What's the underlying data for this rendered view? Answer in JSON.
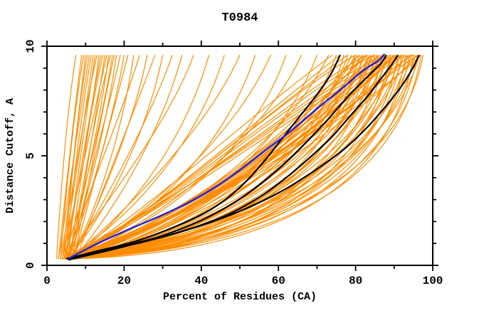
{
  "chart_data": {
    "type": "line",
    "title": "T0984",
    "xlabel": "Percent of Residues (CA)",
    "ylabel": "Distance Cutoff, A",
    "xlim": [
      0,
      100
    ],
    "ylim": [
      0,
      10
    ],
    "x_major_ticks": [
      0,
      20,
      40,
      60,
      80,
      100
    ],
    "x_minor_ticks": [
      10,
      30,
      50,
      70,
      90
    ],
    "y_major_ticks": [
      0,
      5,
      10
    ],
    "y_minor_ticks": [
      1,
      2,
      3,
      4,
      6,
      7,
      8,
      9
    ],
    "x_tick_labels": [
      "0",
      "20",
      "40",
      "60",
      "80",
      "100"
    ],
    "y_tick_labels": [
      "0",
      "5",
      "10"
    ],
    "grid": false,
    "legend": "none",
    "colors": {
      "orange_curves": "#FF8C00",
      "black_curves": "#000000",
      "blue_curve": "#2020DD",
      "frame": "#000000",
      "background": "#FFFFFF"
    },
    "curve_y_start": 0.3,
    "curve_y_end": 9.6,
    "series": {
      "blue_curve": {
        "points": [
          [
            5.5,
            0.3
          ],
          [
            12,
            0.9
          ],
          [
            20,
            1.55
          ],
          [
            28,
            2.15
          ],
          [
            36,
            2.8
          ],
          [
            43,
            3.5
          ],
          [
            50,
            4.35
          ],
          [
            57,
            5.3
          ],
          [
            63,
            6.1
          ],
          [
            70,
            7.15
          ],
          [
            76,
            8.0
          ],
          [
            82,
            8.9
          ],
          [
            86,
            9.35
          ],
          [
            87.5,
            9.65
          ]
        ]
      },
      "black_curves": {
        "curves": [
          [
            [
              5,
              0.3
            ],
            [
              13,
              0.65
            ],
            [
              23,
              1.1
            ],
            [
              33,
              1.75
            ],
            [
              41,
              2.4
            ],
            [
              47,
              3.1
            ],
            [
              52,
              3.9
            ],
            [
              57,
              4.9
            ],
            [
              61,
              5.8
            ],
            [
              66,
              6.9
            ],
            [
              70,
              7.8
            ],
            [
              73.5,
              8.7
            ],
            [
              76,
              9.6
            ]
          ],
          [
            [
              5,
              0.3
            ],
            [
              16,
              0.75
            ],
            [
              28,
              1.25
            ],
            [
              38,
              1.9
            ],
            [
              46,
              2.6
            ],
            [
              53,
              3.4
            ],
            [
              60,
              4.4
            ],
            [
              66,
              5.4
            ],
            [
              72,
              6.5
            ],
            [
              78,
              7.7
            ],
            [
              83,
              8.6
            ],
            [
              86.5,
              9.2
            ],
            [
              88,
              9.6
            ]
          ],
          [
            [
              5.5,
              0.25
            ],
            [
              20,
              0.85
            ],
            [
              34,
              1.5
            ],
            [
              46,
              2.25
            ],
            [
              55,
              3.1
            ],
            [
              62,
              4.0
            ],
            [
              68,
              4.9
            ],
            [
              73.5,
              5.8
            ],
            [
              78.5,
              6.8
            ],
            [
              83,
              7.7
            ],
            [
              86.5,
              8.5
            ],
            [
              89.5,
              9.2
            ],
            [
              91,
              9.6
            ]
          ],
          [
            [
              5.5,
              0.3
            ],
            [
              18,
              0.8
            ],
            [
              31,
              1.35
            ],
            [
              43,
              2.0
            ],
            [
              53,
              2.7
            ],
            [
              62,
              3.5
            ],
            [
              70,
              4.4
            ],
            [
              77,
              5.3
            ],
            [
              83,
              6.3
            ],
            [
              88,
              7.3
            ],
            [
              92,
              8.2
            ],
            [
              94.8,
              9.0
            ],
            [
              96.5,
              9.6
            ]
          ]
        ]
      },
      "orange_curves": {
        "bezier_specs": [
          [
            2.5,
            3.5,
            3.2,
            5.0,
            6.8,
            7.5
          ],
          [
            3,
            4.5,
            2.8,
            6.5,
            6.2,
            9
          ],
          [
            3.5,
            5,
            3.5,
            7,
            7,
            9.5
          ],
          [
            4,
            5.5,
            2.6,
            7.5,
            6,
            10
          ],
          [
            4.5,
            6,
            3.2,
            8,
            7.2,
            10.5
          ],
          [
            3,
            5,
            2.4,
            8,
            6.4,
            11
          ],
          [
            5,
            6.5,
            3.6,
            9,
            7,
            11.5
          ],
          [
            4,
            6,
            2.2,
            9,
            5.8,
            12
          ],
          [
            5.5,
            7,
            3,
            10,
            6.6,
            12.5
          ],
          [
            3.5,
            6,
            2.7,
            10,
            7.4,
            13
          ],
          [
            6,
            8,
            3.3,
            11,
            6.2,
            13.5
          ],
          [
            4.5,
            7,
            2.3,
            11,
            6.9,
            14
          ],
          [
            5,
            8,
            3.8,
            12,
            7.6,
            14.5
          ],
          [
            6.5,
            8.5,
            2.5,
            12,
            6,
            15
          ],
          [
            4,
            7.5,
            3.1,
            12.5,
            7.1,
            15.5
          ],
          [
            5.5,
            8,
            2.2,
            13,
            5.6,
            16
          ],
          [
            6,
            9,
            3.4,
            13.5,
            7.8,
            16.5
          ],
          [
            4.5,
            8.5,
            2.6,
            14,
            6.3,
            17
          ],
          [
            7,
            10,
            3,
            14.5,
            7.3,
            17.5
          ],
          [
            5,
            9,
            2.1,
            15,
            5.9,
            18
          ],
          [
            6.5,
            10,
            3.7,
            16,
            7,
            19
          ],
          [
            5.5,
            10,
            2.4,
            17,
            6.5,
            20
          ],
          [
            7,
            11,
            3.1,
            18,
            7.5,
            21
          ],
          [
            6,
            11.5,
            2.0,
            19,
            5.5,
            22.5
          ],
          [
            5,
            11,
            3.5,
            20,
            7.2,
            24
          ],
          [
            6.5,
            13,
            2.6,
            22,
            6.1,
            26
          ],
          [
            7.5,
            14,
            3.2,
            24,
            7.7,
            28
          ],
          [
            5.5,
            13,
            1.9,
            25,
            5.3,
            30
          ],
          [
            6,
            15,
            2.9,
            27,
            6.8,
            32.5
          ],
          [
            7,
            16,
            2.2,
            29,
            5.7,
            35
          ],
          [
            5,
            15,
            2.8,
            32,
            6.6,
            38
          ],
          [
            6.5,
            18,
            1.8,
            35,
            5.2,
            42
          ],
          [
            4.5,
            18,
            1.6,
            38,
            5.0,
            46
          ],
          [
            6,
            21,
            2.5,
            42,
            6.4,
            50
          ],
          [
            5,
            22,
            1.5,
            45,
            4.8,
            54
          ],
          [
            7,
            26,
            2.3,
            49,
            6.0,
            58
          ],
          [
            4,
            25,
            1.4,
            52,
            4.6,
            62
          ],
          [
            6.5,
            30,
            2.1,
            56,
            5.8,
            66
          ],
          [
            5.5,
            30,
            1.3,
            59,
            4.4,
            70
          ],
          [
            7.5,
            34,
            2.0,
            62,
            5.6,
            73
          ],
          [
            4,
            34,
            0.9,
            64,
            4.2,
            75
          ],
          [
            5,
            38,
            1.4,
            66,
            5.5,
            76
          ],
          [
            6,
            36,
            0.7,
            68,
            3.9,
            77
          ],
          [
            4.5,
            40,
            1.2,
            69,
            5.0,
            78
          ],
          [
            7,
            42,
            1.6,
            70,
            6.2,
            79
          ],
          [
            5.5,
            38,
            0.8,
            71,
            4.4,
            80
          ],
          [
            3.5,
            44,
            1.3,
            72,
            5.7,
            80.5
          ],
          [
            6.5,
            40,
            0.6,
            73,
            3.6,
            81
          ],
          [
            5,
            45,
            1.5,
            74,
            6.0,
            81.5
          ],
          [
            4,
            42,
            1.0,
            74,
            4.7,
            82
          ],
          [
            7.5,
            47,
            1.7,
            75,
            6.4,
            82.5
          ],
          [
            5.5,
            44,
            0.7,
            76,
            4.0,
            83
          ],
          [
            4.5,
            48,
            1.2,
            76,
            5.3,
            83.5
          ],
          [
            6,
            46,
            0.9,
            77,
            4.5,
            84
          ],
          [
            3.5,
            50,
            1.6,
            77,
            6.1,
            84.5
          ],
          [
            7,
            48,
            0.6,
            78,
            3.7,
            85
          ],
          [
            5,
            52,
            1.3,
            79,
            5.6,
            85.5
          ],
          [
            6.5,
            50,
            1.0,
            79,
            4.8,
            86
          ],
          [
            4,
            53,
            1.7,
            80,
            6.3,
            86.5
          ],
          [
            5.5,
            51,
            0.7,
            81,
            4.1,
            87
          ],
          [
            7.5,
            55,
            1.4,
            81,
            5.8,
            87.5
          ],
          [
            4.5,
            52,
            0.9,
            82,
            4.6,
            88
          ],
          [
            6,
            56,
            1.6,
            82,
            6.0,
            88.5
          ],
          [
            5,
            54,
            0.6,
            83,
            3.8,
            89
          ],
          [
            3.5,
            57,
            1.2,
            84,
            5.4,
            89.5
          ],
          [
            7,
            56,
            0.9,
            84,
            4.9,
            90
          ],
          [
            5.5,
            59,
            1.5,
            85,
            6.2,
            90.5
          ],
          [
            6.5,
            57,
            0.7,
            86,
            4.2,
            91
          ],
          [
            4,
            60,
            1.3,
            86,
            5.7,
            91.5
          ],
          [
            5,
            58,
            1.0,
            87,
            4.4,
            92
          ],
          [
            7.5,
            62,
            1.6,
            87,
            6.1,
            92.5
          ],
          [
            4.5,
            60,
            0.7,
            88,
            4.0,
            93
          ],
          [
            6,
            63,
            1.2,
            88,
            5.5,
            93.5
          ],
          [
            5.5,
            61,
            0.9,
            89,
            4.7,
            94
          ],
          [
            3.5,
            64,
            1.5,
            89,
            6.0,
            94.5
          ],
          [
            7,
            63,
            0.6,
            90,
            3.9,
            95
          ],
          [
            5,
            66,
            1.3,
            90,
            5.6,
            95.5
          ],
          [
            6.5,
            64,
            1.0,
            91,
            4.5,
            96
          ],
          [
            4,
            67,
            1.6,
            91,
            5.9,
            96.5
          ],
          [
            5.5,
            66,
            0.8,
            92,
            4.3,
            97
          ],
          [
            6,
            68,
            1.2,
            93,
            5.2,
            97.5
          ],
          [
            4.5,
            30,
            0.8,
            68,
            5.8,
            80
          ],
          [
            5,
            33,
            1.8,
            70,
            6.8,
            82
          ],
          [
            6,
            28,
            1.1,
            72,
            6.5,
            84
          ],
          [
            4,
            36,
            2.0,
            74,
            7.0,
            86
          ],
          [
            5.5,
            31,
            0.9,
            76,
            6.7,
            88
          ],
          [
            6.5,
            38,
            1.9,
            78,
            7.2,
            90
          ],
          [
            5,
            34,
            1.0,
            80,
            6.9,
            92
          ],
          [
            4.5,
            40,
            2.1,
            82,
            7.4,
            94
          ],
          [
            6,
            36,
            1.1,
            84,
            7.1,
            96
          ],
          [
            5.5,
            42,
            2.2,
            85,
            7.6,
            97
          ],
          [
            4,
            48,
            2.8,
            72,
            7.8,
            83
          ],
          [
            6.5,
            52,
            3.0,
            75,
            8.0,
            86
          ],
          [
            5,
            55,
            3.2,
            78,
            8.2,
            89
          ],
          [
            7,
            58,
            3.4,
            81,
            8.4,
            92
          ],
          [
            5.5,
            60,
            3.6,
            84,
            8.6,
            95
          ],
          [
            4.5,
            50,
            2.9,
            74,
            7.9,
            85
          ],
          [
            6,
            54,
            3.1,
            77,
            8.1,
            87
          ],
          [
            5,
            57,
            3.3,
            80,
            8.3,
            91
          ],
          [
            6.5,
            62,
            3.7,
            86,
            8.7,
            96.5
          ],
          [
            4,
            46,
            2.6,
            70,
            7.7,
            81
          ],
          [
            5,
            25,
            1.9,
            60,
            7.4,
            78
          ],
          [
            6,
            28,
            2.3,
            62,
            7.8,
            80
          ],
          [
            4.5,
            32,
            2.7,
            65,
            8.0,
            83
          ],
          [
            5.5,
            35,
            3.0,
            68,
            8.3,
            85
          ],
          [
            6.5,
            38,
            3.3,
            71,
            8.5,
            88
          ],
          [
            5,
            41,
            3.6,
            74,
            8.8,
            91
          ],
          [
            4,
            44,
            3.9,
            77,
            9.0,
            93
          ],
          [
            6,
            47,
            4.2,
            80,
            9.2,
            95
          ],
          [
            5.5,
            23,
            1.7,
            58,
            7.2,
            76
          ],
          [
            7,
            44,
            2.4,
            76,
            7.5,
            90
          ],
          [
            4.5,
            20,
            1.5,
            50,
            6.5,
            74
          ]
        ]
      }
    }
  }
}
